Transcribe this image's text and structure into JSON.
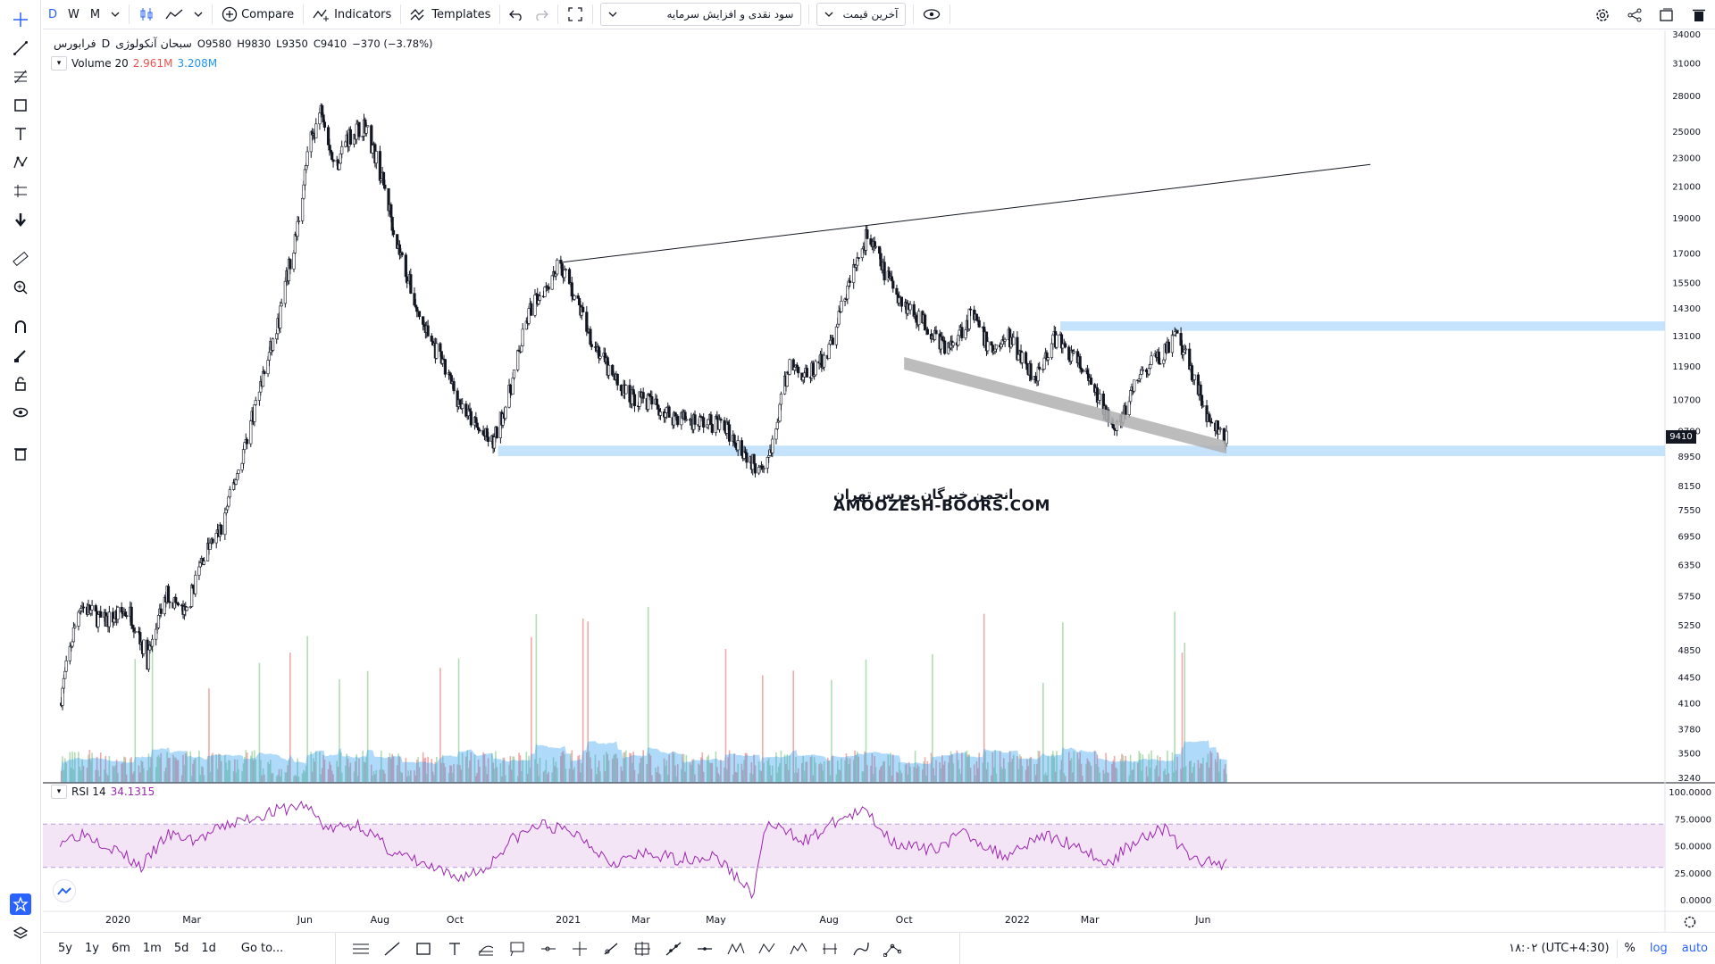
{
  "toolbar": {
    "intervals": [
      "D",
      "W",
      "M"
    ],
    "compare_label": "Compare",
    "indicators_label": "Indicators",
    "templates_label": "Templates",
    "dropdown1_value": "سود نقدی و افزایش سرمایه",
    "dropdown2_value": "آخرین قیمت"
  },
  "legend": {
    "symbol": "سبحان آنکولوژی",
    "exchange": "فرابورس",
    "interval": "D",
    "open": "O9580",
    "high": "H9830",
    "low": "L9350",
    "close": "C9410",
    "change": "−370 (−3.78%)",
    "volume_name": "Volume 20",
    "volume_value1": "2.961M",
    "volume_value2": "3.208M",
    "rsi_name": "RSI 14",
    "rsi_value": "34.1315"
  },
  "watermark": {
    "persian": "انجمن خبرگان بورس تهران",
    "english": "AMOOZESH-BOORS.COM"
  },
  "last_price_label": "9410",
  "bottombar": {
    "ranges": [
      "5y",
      "1y",
      "6m",
      "1m",
      "5d",
      "1d"
    ],
    "goto_label": "Go to...",
    "time": "۱۸:۰۲ (UTC+4:30)",
    "percent_label": "%",
    "log_label": "log",
    "auto_label": "auto"
  },
  "colors": {
    "accent": "#2962ff",
    "rsi_line": "#9c27b0",
    "rsi_band": "#f3e5f5",
    "volume_ma": "#2196f3",
    "support_zone": "#bbdefb",
    "channel": "#b0b0b0",
    "up_volume": "#a5d6a7",
    "down_volume": "#ef9a9a"
  },
  "chart_data": {
    "type": "candlestick",
    "scale": "log",
    "price_ticks": [
      34000,
      31000,
      28000,
      25000,
      23000,
      21000,
      19000,
      17000,
      15500,
      14300,
      13100,
      11900,
      10700,
      9700,
      8950,
      8150,
      7550,
      6950,
      6350,
      5750,
      5250,
      4850,
      4450,
      4100,
      3780,
      3500,
      3240
    ],
    "rsi_ticks": [
      "100.0000",
      "75.0000",
      "50.0000",
      "25.0000",
      "0.0000"
    ],
    "rsi_bands": [
      30,
      70
    ],
    "x_labels": [
      "2020",
      "Mar",
      "Jun",
      "Aug",
      "Oct",
      "2021",
      "Mar",
      "May",
      "Aug",
      "Oct",
      "2022",
      "Mar",
      "Jun"
    ],
    "close_path": [
      [
        "2019-11-15",
        4100
      ],
      [
        "2019-12-01",
        5600
      ],
      [
        "2019-12-20",
        5300
      ],
      [
        "2020-01-10",
        5500
      ],
      [
        "2020-01-25",
        4700
      ],
      [
        "2020-02-10",
        5800
      ],
      [
        "2020-02-25",
        5400
      ],
      [
        "2020-03-10",
        6500
      ],
      [
        "2020-03-25",
        7100
      ],
      [
        "2020-04-10",
        8800
      ],
      [
        "2020-04-25",
        11000
      ],
      [
        "2020-05-10",
        13500
      ],
      [
        "2020-05-25",
        18000
      ],
      [
        "2020-06-05",
        24000
      ],
      [
        "2020-06-15",
        27000
      ],
      [
        "2020-06-25",
        22000
      ],
      [
        "2020-07-05",
        24500
      ],
      [
        "2020-07-20",
        25500
      ],
      [
        "2020-08-01",
        22000
      ],
      [
        "2020-08-15",
        17500
      ],
      [
        "2020-09-01",
        14000
      ],
      [
        "2020-09-20",
        12000
      ],
      [
        "2020-10-05",
        10600
      ],
      [
        "2020-10-20",
        9700
      ],
      [
        "2020-11-01",
        9300
      ],
      [
        "2020-11-15",
        11000
      ],
      [
        "2020-12-01",
        14200
      ],
      [
        "2020-12-15",
        15500
      ],
      [
        "2020-12-25",
        16500
      ],
      [
        "2021-01-05",
        15000
      ],
      [
        "2021-01-20",
        13000
      ],
      [
        "2021-02-05",
        11500
      ],
      [
        "2021-02-20",
        10800
      ],
      [
        "2021-03-05",
        10700
      ],
      [
        "2021-03-25",
        10200
      ],
      [
        "2021-04-15",
        10000
      ],
      [
        "2021-05-05",
        9900
      ],
      [
        "2021-05-20",
        9300
      ],
      [
        "2021-06-01",
        8700
      ],
      [
        "2021-06-15",
        9000
      ],
      [
        "2021-06-30",
        12000
      ],
      [
        "2021-07-15",
        11500
      ],
      [
        "2021-08-01",
        12500
      ],
      [
        "2021-08-15",
        15000
      ],
      [
        "2021-09-01",
        18000
      ],
      [
        "2021-09-15",
        16000
      ],
      [
        "2021-10-01",
        14500
      ],
      [
        "2021-10-20",
        13500
      ],
      [
        "2021-11-05",
        12500
      ],
      [
        "2021-11-25",
        14000
      ],
      [
        "2021-12-10",
        12500
      ],
      [
        "2021-12-25",
        13000
      ],
      [
        "2022-01-15",
        11500
      ],
      [
        "2022-02-01",
        13000
      ],
      [
        "2022-02-20",
        12000
      ],
      [
        "2022-03-10",
        10500
      ],
      [
        "2022-03-25",
        9800
      ],
      [
        "2022-04-10",
        11500
      ],
      [
        "2022-04-25",
        12200
      ],
      [
        "2022-05-10",
        13000
      ],
      [
        "2022-05-25",
        11500
      ],
      [
        "2022-06-05",
        10000
      ],
      [
        "2022-06-20",
        9410
      ]
    ],
    "rsi_path": [
      [
        "2019-11-15",
        55
      ],
      [
        "2019-12-05",
        62
      ],
      [
        "2020-01-01",
        45
      ],
      [
        "2020-01-20",
        30
      ],
      [
        "2020-02-10",
        60
      ],
      [
        "2020-03-05",
        55
      ],
      [
        "2020-04-01",
        70
      ],
      [
        "2020-05-01",
        80
      ],
      [
        "2020-06-01",
        88
      ],
      [
        "2020-06-20",
        65
      ],
      [
        "2020-07-15",
        70
      ],
      [
        "2020-08-10",
        45
      ],
      [
        "2020-09-10",
        30
      ],
      [
        "2020-10-01",
        20
      ],
      [
        "2020-10-25",
        28
      ],
      [
        "2020-11-15",
        55
      ],
      [
        "2020-12-10",
        70
      ],
      [
        "2021-01-10",
        60
      ],
      [
        "2021-02-05",
        35
      ],
      [
        "2021-03-05",
        42
      ],
      [
        "2021-04-01",
        38
      ],
      [
        "2021-05-01",
        40
      ],
      [
        "2021-06-01",
        5
      ],
      [
        "2021-06-10",
        70
      ],
      [
        "2021-07-15",
        55
      ],
      [
        "2021-08-10",
        75
      ],
      [
        "2021-09-01",
        82
      ],
      [
        "2021-09-20",
        55
      ],
      [
        "2021-10-20",
        45
      ],
      [
        "2021-11-20",
        62
      ],
      [
        "2021-12-20",
        40
      ],
      [
        "2022-01-20",
        60
      ],
      [
        "2022-02-20",
        50
      ],
      [
        "2022-03-15",
        32
      ],
      [
        "2022-04-10",
        58
      ],
      [
        "2022-05-01",
        66
      ],
      [
        "2022-05-20",
        40
      ],
      [
        "2022-06-05",
        34
      ],
      [
        "2022-06-20",
        34
      ]
    ],
    "zones": [
      {
        "name": "support",
        "low": 8950,
        "high": 9250,
        "from": "2020-11-05"
      },
      {
        "name": "resistance",
        "low": 13300,
        "high": 13700,
        "from": "2022-02-05"
      }
    ],
    "trendlines": [
      {
        "from": [
          "2020-12-25",
          16500
        ],
        "to": [
          "2022-10-15",
          22500
        ]
      }
    ],
    "channel": {
      "from": [
        "2021-10-01",
        12000
      ],
      "to": [
        "2022-06-20",
        9200
      ]
    }
  }
}
